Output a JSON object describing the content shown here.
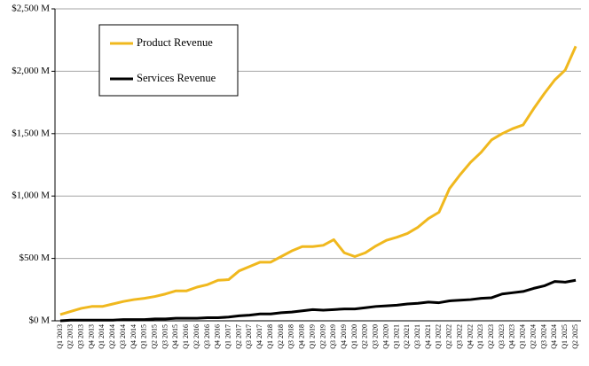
{
  "chart_data": {
    "type": "line",
    "categories": [
      "Q1 2013",
      "Q2 2013",
      "Q3 2013",
      "Q4 2013",
      "Q1 2014",
      "Q2 2014",
      "Q3 2014",
      "Q4 2014",
      "Q1 2015",
      "Q2 2015",
      "Q3 2015",
      "Q4 2015",
      "Q1 2016",
      "Q2 2016",
      "Q3 2016",
      "Q4 2016",
      "Q1 2017",
      "Q2 2017",
      "Q3 2017",
      "Q4 2017",
      "Q1 2018",
      "Q2 2018",
      "Q3 2018",
      "Q4 2018",
      "Q1 2019",
      "Q2 2019",
      "Q3 2019",
      "Q4 2019",
      "Q1 2020",
      "Q2 2020",
      "Q3 2020",
      "Q4 2020",
      "Q1 2021",
      "Q2 2021",
      "Q3 2021",
      "Q4 2021",
      "Q1 2022",
      "Q2 2022",
      "Q3 2022",
      "Q4 2022",
      "Q1 2023",
      "Q2 2023",
      "Q3 2023",
      "Q4 2023",
      "Q1 2024",
      "Q2 2024",
      "Q3 2024",
      "Q4 2024",
      "Q1 2025",
      "Q2 2025"
    ],
    "series": [
      {
        "name": "Product Revenue",
        "color": "#f0b81e",
        "values": [
          50,
          75,
          100,
          115,
          115,
          135,
          155,
          170,
          180,
          195,
          215,
          240,
          240,
          270,
          290,
          325,
          330,
          400,
          435,
          470,
          470,
          515,
          560,
          595,
          595,
          605,
          650,
          545,
          515,
          545,
          600,
          645,
          670,
          700,
          750,
          820,
          870,
          1060,
          1170,
          1270,
          1350,
          1450,
          1500,
          1540,
          1570,
          1700,
          1820,
          1930,
          2010,
          2200
        ]
      },
      {
        "name": "Services Revenue",
        "color": "#000000",
        "values": [
          0,
          5,
          5,
          5,
          5,
          5,
          10,
          10,
          10,
          15,
          15,
          20,
          20,
          20,
          25,
          25,
          30,
          40,
          45,
          55,
          55,
          65,
          70,
          80,
          90,
          85,
          90,
          95,
          95,
          105,
          115,
          120,
          125,
          135,
          140,
          150,
          145,
          160,
          165,
          170,
          180,
          185,
          215,
          225,
          235,
          260,
          280,
          315,
          310,
          325
        ]
      }
    ],
    "ylim": [
      0,
      2500
    ],
    "yticks": [
      {
        "value": 0,
        "label": "$0 M"
      },
      {
        "value": 500,
        "label": "$500 M"
      },
      {
        "value": 1000,
        "label": "$1,000 M"
      },
      {
        "value": 1500,
        "label": "$1,500 M"
      },
      {
        "value": 2000,
        "label": "$2,000 M"
      },
      {
        "value": 2500,
        "label": "$2,500 M"
      }
    ],
    "grid": true,
    "legend": "upper left"
  }
}
